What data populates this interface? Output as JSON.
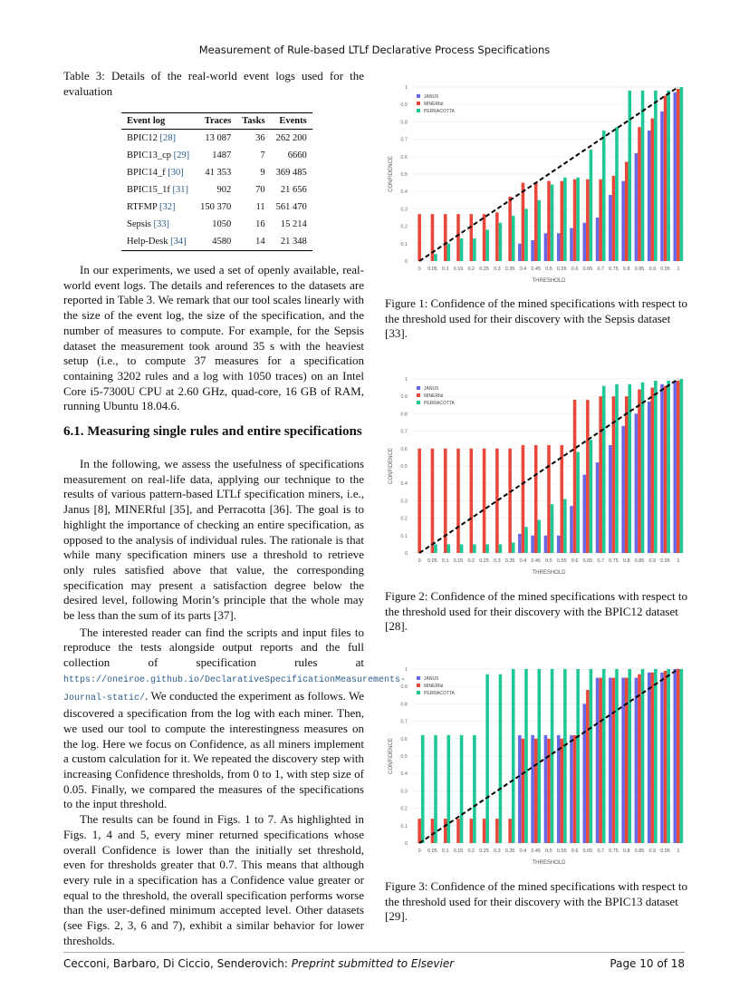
{
  "header": {
    "title": "Measurement of Rule-based LTLf Declarative Process Specifications"
  },
  "table": {
    "caption": "Table 3: Details of the real-world event logs used for the evaluation",
    "columns": [
      "Event log",
      "Traces",
      "Tasks",
      "Events"
    ],
    "rows": [
      [
        "BPIC12 [28]",
        "13 087",
        "36",
        "262 200"
      ],
      [
        "BPIC13_cp [29]",
        "1487",
        "7",
        "6660"
      ],
      [
        "BPIC14_f [30]",
        "41 353",
        "9",
        "369 485"
      ],
      [
        "BPIC15_1f [31]",
        "902",
        "70",
        "21 656"
      ],
      [
        "RTFMP [32]",
        "150 370",
        "11",
        "561 470"
      ],
      [
        "Sepsis [33]",
        "1050",
        "16",
        "15 214"
      ],
      [
        "Help-Desk [34]",
        "4580",
        "14",
        "21 348"
      ]
    ]
  },
  "body": {
    "p1": "In our experiments, we used a set of openly available, real-world event logs. The details and references to the datasets are reported in Table 3. We remark that our tool scales linearly with the size of the event log, the size of the specification, and the number of measures to compute. For example, for the Sepsis dataset the measurement took around 35 s with the heaviest setup (i.e., to compute 37 measures for a specification containing 3202 rules and a log with 1050 traces) on an Intel Core i5-7300U CPU at 2.60 GHz, quad-core, 16 GB of RAM, running Ubuntu 18.04.6.",
    "section": "6.1. Measuring single rules and entire specifications",
    "p2": "In the following, we assess the usefulness of specifications measurement on real-life data, applying our technique to the results of various pattern-based LTLf specification miners, i.e., Janus [8], MINERful [35], and Perracotta [36]. The goal is to highlight the importance of checking an entire specification, as opposed to the analysis of individual rules. The rationale is that while many specification miners use a threshold to retrieve only rules satisfied above that value, the corresponding specification may present a satisfaction degree below the desired level, following Morin’s principle that the whole may be less than the sum of its parts [37].",
    "p3a": "The interested reader can find the scripts and input files to reproduce the tests alongside output reports and the full collection of specification rules at",
    "url": "https://oneiroe.github.io/DeclarativeSpecificationMeasurements-Journal-static/",
    "p3b": ". We conducted the experiment as follows. We discovered a specification from the log with each miner. Then, we used our tool to compute the interestingness measures on the log. Here we focus on Confidence, as all miners implement a custom calculation for it. We repeated the discovery step with increasing Confidence thresholds, from 0 to 1, with step size of 0.05. Finally, we compared the measures of the specifications to the input threshold.",
    "p4": "The results can be found in Figs. 1 to 7. As highlighted in Figs. 1, 4 and 5, every miner returned specifications whose overall Confidence is lower than the initially set threshold, even for thresholds greater that 0.7. This means that although every rule in a specification has a Confidence value greater or equal to the threshold, the overall specification performs worse than the user-defined minimum accepted level. Other datasets (see Figs. 2, 3, 6 and 7), exhibit a similar behavior for lower thresholds."
  },
  "footer": {
    "authors": "Cecconi, Barbaro, Di Ciccio, Senderovich:",
    "venue": "Preprint submitted to Elsevier",
    "page": "Page 10 of 18"
  },
  "colors": {
    "janus": "#6a66e8",
    "minerful": "#e8473a",
    "perracotta": "#1ec896"
  },
  "chart_data": [
    {
      "type": "bar",
      "caption": "Figure 1: Confidence of the mined specifications with respect to the threshold used for their discovery with the Sepsis dataset [33].",
      "xlabel": "THRESHOLD",
      "ylabel": "CONFIDENCE",
      "ylim": [
        0,
        1
      ],
      "categories": [
        "0",
        "0.05",
        "0.1",
        "0.15",
        "0.2",
        "0.25",
        "0.3",
        "0.35",
        "0.4",
        "0.45",
        "0.5",
        "0.55",
        "0.6",
        "0.65",
        "0.7",
        "0.75",
        "0.8",
        "0.85",
        "0.9",
        "0.95",
        "1"
      ],
      "yticks": [
        "0",
        "0.1",
        "0.2",
        "0.3",
        "0.4",
        "0.5",
        "0.6",
        "0.7",
        "0.8",
        "0.9",
        "1"
      ],
      "legend": "top-left",
      "series": [
        {
          "name": "JANUS",
          "values": [
            0,
            0,
            0,
            0,
            0,
            0,
            0,
            0,
            0.1,
            0.12,
            0.16,
            0.16,
            0.19,
            0.22,
            0.25,
            0.38,
            0.46,
            0.62,
            0.75,
            0.86,
            0.97
          ]
        },
        {
          "name": "MINERful",
          "values": [
            0.27,
            0.27,
            0.27,
            0.27,
            0.27,
            0.27,
            0.28,
            0.37,
            0.45,
            0.45,
            0.46,
            0.46,
            0.47,
            0.47,
            0.47,
            0.49,
            0.57,
            0.77,
            0.82,
            0.95,
            0.99
          ]
        },
        {
          "name": "PERRACOTTA",
          "values": [
            0,
            0.04,
            0.1,
            0.13,
            0.13,
            0.18,
            0.22,
            0.26,
            0.3,
            0.35,
            0.44,
            0.48,
            0.48,
            0.64,
            0.75,
            0.77,
            0.98,
            0.98,
            0.98,
            0.98,
            1
          ]
        }
      ]
    },
    {
      "type": "bar",
      "caption": "Figure 2: Confidence of the mined specifications with respect to the threshold used for their discovery with the BPIC12 dataset [28].",
      "xlabel": "THRESHOLD",
      "ylabel": "CONFIDENCE",
      "ylim": [
        0,
        1
      ],
      "categories": [
        "0",
        "0.05",
        "0.1",
        "0.15",
        "0.2",
        "0.25",
        "0.3",
        "0.35",
        "0.4",
        "0.45",
        "0.5",
        "0.55",
        "0.6",
        "0.65",
        "0.7",
        "0.75",
        "0.8",
        "0.85",
        "0.9",
        "0.95",
        "1"
      ],
      "yticks": [
        "0",
        "0.1",
        "0.2",
        "0.3",
        "0.4",
        "0.5",
        "0.6",
        "0.7",
        "0.8",
        "0.9",
        "1"
      ],
      "legend": "top-left",
      "series": [
        {
          "name": "JANUS",
          "values": [
            0,
            0,
            0,
            0,
            0,
            0,
            0,
            0,
            0.11,
            0.1,
            0.1,
            0.1,
            0.27,
            0.45,
            0.52,
            0.62,
            0.73,
            0.8,
            0.87,
            0.97,
            0.99
          ]
        },
        {
          "name": "MINERful",
          "values": [
            0.6,
            0.6,
            0.6,
            0.6,
            0.6,
            0.6,
            0.6,
            0.6,
            0.62,
            0.62,
            0.62,
            0.62,
            0.88,
            0.88,
            0.9,
            0.9,
            0.9,
            0.94,
            0.95,
            0.96,
            0.99
          ]
        },
        {
          "name": "PERRACOTTA",
          "values": [
            0,
            0.05,
            0.05,
            0.05,
            0.05,
            0.05,
            0.05,
            0.06,
            0.15,
            0.19,
            0.28,
            0.31,
            0.58,
            0.65,
            0.96,
            0.97,
            0.97,
            0.98,
            0.99,
            0.99,
            1
          ]
        }
      ]
    },
    {
      "type": "bar",
      "caption": "Figure 3: Confidence of the mined specifications with respect to the threshold used for their discovery with the BPIC13 dataset [29].",
      "xlabel": "THRESHOLD",
      "ylabel": "CONFIDENCE",
      "ylim": [
        0,
        1
      ],
      "categories": [
        "0",
        "0.05",
        "0.1",
        "0.15",
        "0.2",
        "0.25",
        "0.3",
        "0.35",
        "0.4",
        "0.45",
        "0.5",
        "0.55",
        "0.6",
        "0.65",
        "0.7",
        "0.75",
        "0.8",
        "0.85",
        "0.9",
        "0.95",
        "1"
      ],
      "yticks": [
        "0",
        "0.1",
        "0.2",
        "0.3",
        "0.4",
        "0.5",
        "0.6",
        "0.7",
        "0.8",
        "0.9",
        "1"
      ],
      "legend": "top-left",
      "series": [
        {
          "name": "JANUS",
          "values": [
            0,
            0,
            0,
            0,
            0,
            0,
            0,
            0,
            0.62,
            0.62,
            0.62,
            0.62,
            0.62,
            0.8,
            0.95,
            0.95,
            0.95,
            0.95,
            0.98,
            0.98,
            1
          ]
        },
        {
          "name": "MINERful",
          "values": [
            0.14,
            0.14,
            0.14,
            0.14,
            0.14,
            0.14,
            0.14,
            0.14,
            0.6,
            0.6,
            0.6,
            0.6,
            0.62,
            0.88,
            0.95,
            0.95,
            0.95,
            0.97,
            0.98,
            0.99,
            1
          ]
        },
        {
          "name": "PERRACOTTA",
          "values": [
            0.62,
            0.62,
            0.62,
            0.62,
            0.62,
            0.97,
            0.97,
            1,
            1,
            1,
            1,
            1,
            1,
            1,
            1,
            1,
            1,
            1,
            1,
            1,
            1
          ]
        }
      ]
    }
  ]
}
